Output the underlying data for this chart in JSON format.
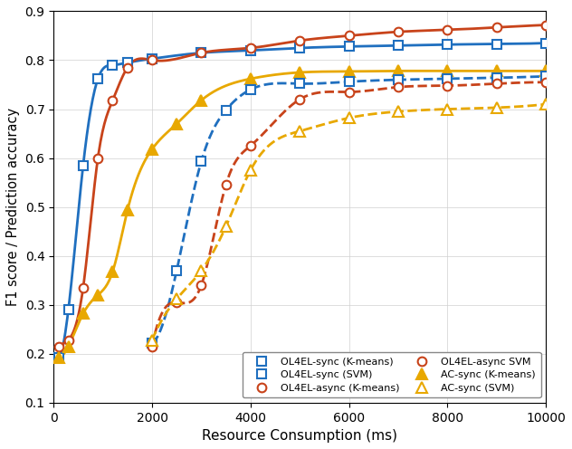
{
  "xlabel": "Resource Consumption (ms)",
  "ylabel": "F1 score / Prediction accuracy",
  "xlim": [
    0,
    10000
  ],
  "ylim": [
    0.1,
    0.9
  ],
  "yticks": [
    0.1,
    0.2,
    0.3,
    0.4,
    0.5,
    0.6,
    0.7,
    0.8,
    0.9
  ],
  "xticks": [
    0,
    2000,
    4000,
    6000,
    8000,
    10000
  ],
  "series": [
    {
      "key": "ol4el_sync_kmeans",
      "x": [
        100,
        300,
        600,
        900,
        1200,
        1500,
        2000,
        3000,
        4000,
        5000,
        6000,
        7000,
        8000,
        9000,
        10000
      ],
      "y": [
        0.192,
        0.29,
        0.585,
        0.762,
        0.79,
        0.795,
        0.803,
        0.815,
        0.82,
        0.825,
        0.828,
        0.83,
        0.832,
        0.833,
        0.835
      ],
      "color": "#1F6FBF",
      "linestyle": "-",
      "marker": "s",
      "markersize": 7,
      "markerfacecolor": "white",
      "lw": 2.0,
      "label": "OL4EL-sync (K-means)"
    },
    {
      "key": "ol4el_async_kmeans",
      "x": [
        100,
        300,
        600,
        900,
        1200,
        1500,
        2000,
        3000,
        4000,
        5000,
        6000,
        7000,
        8000,
        9000,
        10000
      ],
      "y": [
        0.215,
        0.228,
        0.335,
        0.6,
        0.718,
        0.785,
        0.8,
        0.815,
        0.825,
        0.84,
        0.85,
        0.858,
        0.862,
        0.867,
        0.872
      ],
      "color": "#C8431A",
      "linestyle": "-",
      "marker": "o",
      "markersize": 7,
      "markerfacecolor": "white",
      "lw": 2.0,
      "label": "OL4EL-async (K-means)"
    },
    {
      "key": "ac_sync_kmeans",
      "x": [
        100,
        300,
        600,
        900,
        1200,
        1500,
        2000,
        2500,
        3000,
        4000,
        5000,
        6000,
        7000,
        8000,
        9000,
        10000
      ],
      "y": [
        0.192,
        0.215,
        0.282,
        0.32,
        0.368,
        0.493,
        0.618,
        0.67,
        0.718,
        0.762,
        0.775,
        0.777,
        0.778,
        0.778,
        0.778,
        0.778
      ],
      "color": "#E8A800",
      "linestyle": "-",
      "marker": "^",
      "markersize": 8,
      "markerfacecolor": "#E8A800",
      "lw": 2.0,
      "label": "AC-sync (K-means)"
    },
    {
      "key": "ol4el_sync_svm",
      "x": [
        2000,
        2500,
        3000,
        3500,
        4000,
        5000,
        6000,
        7000,
        8000,
        9000,
        10000
      ],
      "y": [
        0.222,
        0.37,
        0.593,
        0.698,
        0.74,
        0.752,
        0.756,
        0.76,
        0.762,
        0.764,
        0.767
      ],
      "color": "#1F6FBF",
      "linestyle": "--",
      "marker": "s",
      "markersize": 7,
      "markerfacecolor": "white",
      "lw": 2.0,
      "label": "OL4EL-sync (SVM)"
    },
    {
      "key": "ol4el_async_svm",
      "x": [
        2000,
        2500,
        3000,
        3500,
        4000,
        5000,
        6000,
        7000,
        8000,
        9000,
        10000
      ],
      "y": [
        0.215,
        0.305,
        0.34,
        0.545,
        0.625,
        0.72,
        0.735,
        0.745,
        0.748,
        0.752,
        0.755
      ],
      "color": "#C8431A",
      "linestyle": "--",
      "marker": "o",
      "markersize": 7,
      "markerfacecolor": "white",
      "lw": 2.0,
      "label": "OL4EL-async SVM"
    },
    {
      "key": "ac_sync_svm",
      "x": [
        2000,
        2500,
        3000,
        3500,
        4000,
        5000,
        6000,
        7000,
        8000,
        9000,
        10000
      ],
      "y": [
        0.228,
        0.312,
        0.37,
        0.46,
        0.575,
        0.655,
        0.682,
        0.695,
        0.7,
        0.703,
        0.71
      ],
      "color": "#E8A800",
      "linestyle": "--",
      "marker": "^",
      "markersize": 8,
      "markerfacecolor": "white",
      "lw": 2.0,
      "label": "AC-sync (SVM)"
    }
  ],
  "legend_order": [
    0,
    3,
    1,
    4,
    2,
    5
  ]
}
